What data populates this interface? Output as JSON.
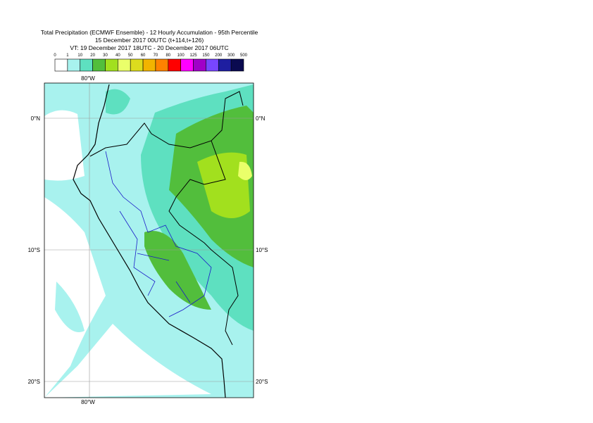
{
  "title_lines": [
    "Total Precipitation (ECMWF Ensemble) - 12 Hourly Accumulation - 95th Percentile",
    "15 December 2017 00UTC (t+114,t+126)",
    "VT: 19 December 2017 18UTC - 20 December 2017 06UTC"
  ],
  "legend": {
    "ticks": [
      0,
      1,
      10,
      20,
      30,
      40,
      50,
      60,
      70,
      80,
      100,
      125,
      150,
      200,
      300,
      500
    ],
    "colors": [
      "#ffffff",
      "#a8f2ee",
      "#5ee0c0",
      "#52be3c",
      "#a2e01e",
      "#eaff6a",
      "#dcdc1e",
      "#f2b400",
      "#ff8200",
      "#ff0000",
      "#ff00ff",
      "#a000c8",
      "#7846ff",
      "#1e1ea0",
      "#0a0a50"
    ]
  },
  "map": {
    "lon_labels": [
      "80°W"
    ],
    "lat_labels": [
      "0°N",
      "10°S",
      "20°S"
    ]
  }
}
